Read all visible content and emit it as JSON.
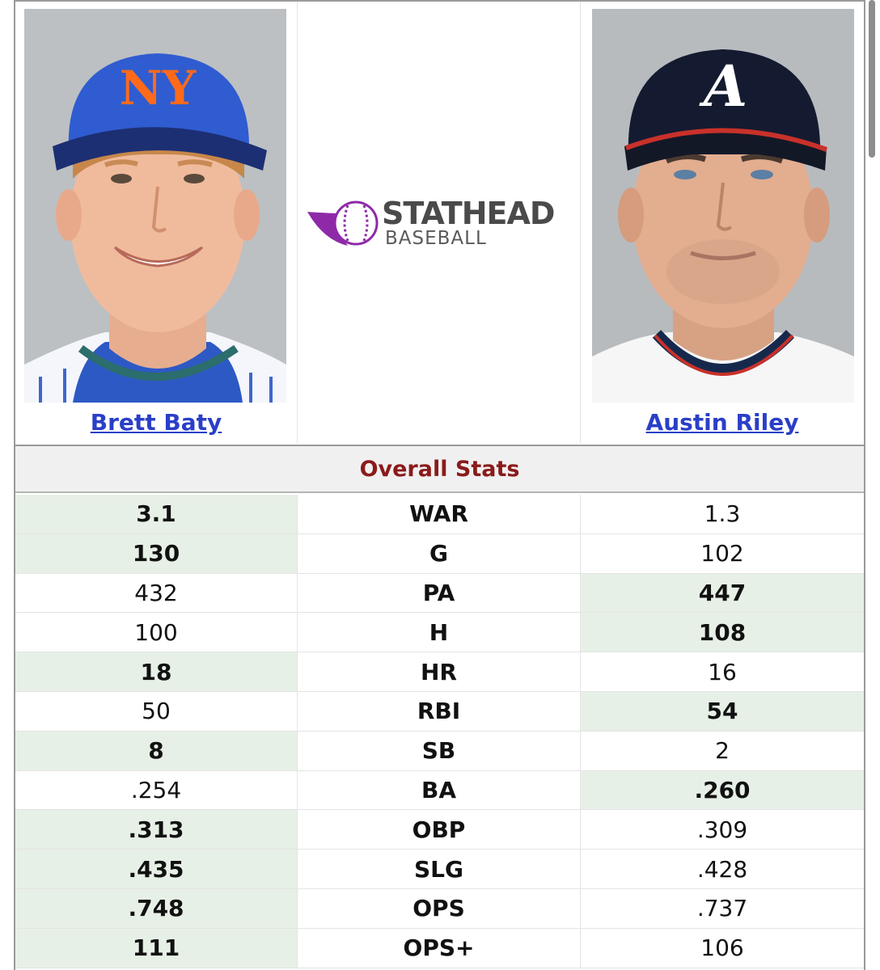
{
  "players": {
    "left": {
      "name": "Brett Baty"
    },
    "right": {
      "name": "Austin Riley"
    }
  },
  "logo": {
    "brand": "STATHEAD",
    "sub": "BASEBALL"
  },
  "colors": {
    "link": "#2a3fc8",
    "section_title": "#8b1a1a",
    "winner_bg": "#e7f0e6",
    "logo_purple": "#8e2aa8"
  },
  "section_title": "Overall Stats",
  "stats": [
    {
      "label": "WAR",
      "left": "3.1",
      "right": "1.3",
      "winner": "left"
    },
    {
      "label": "G",
      "left": "130",
      "right": "102",
      "winner": "left"
    },
    {
      "label": "PA",
      "left": "432",
      "right": "447",
      "winner": "right"
    },
    {
      "label": "H",
      "left": "100",
      "right": "108",
      "winner": "right"
    },
    {
      "label": "HR",
      "left": "18",
      "right": "16",
      "winner": "left"
    },
    {
      "label": "RBI",
      "left": "50",
      "right": "54",
      "winner": "right"
    },
    {
      "label": "SB",
      "left": "8",
      "right": "2",
      "winner": "left"
    },
    {
      "label": "BA",
      "left": ".254",
      "right": ".260",
      "winner": "right"
    },
    {
      "label": "OBP",
      "left": ".313",
      "right": ".309",
      "winner": "left"
    },
    {
      "label": "SLG",
      "left": ".435",
      "right": ".428",
      "winner": "left"
    },
    {
      "label": "OPS",
      "left": ".748",
      "right": ".737",
      "winner": "left"
    },
    {
      "label": "OPS+",
      "left": "111",
      "right": "106",
      "winner": "left"
    }
  ]
}
